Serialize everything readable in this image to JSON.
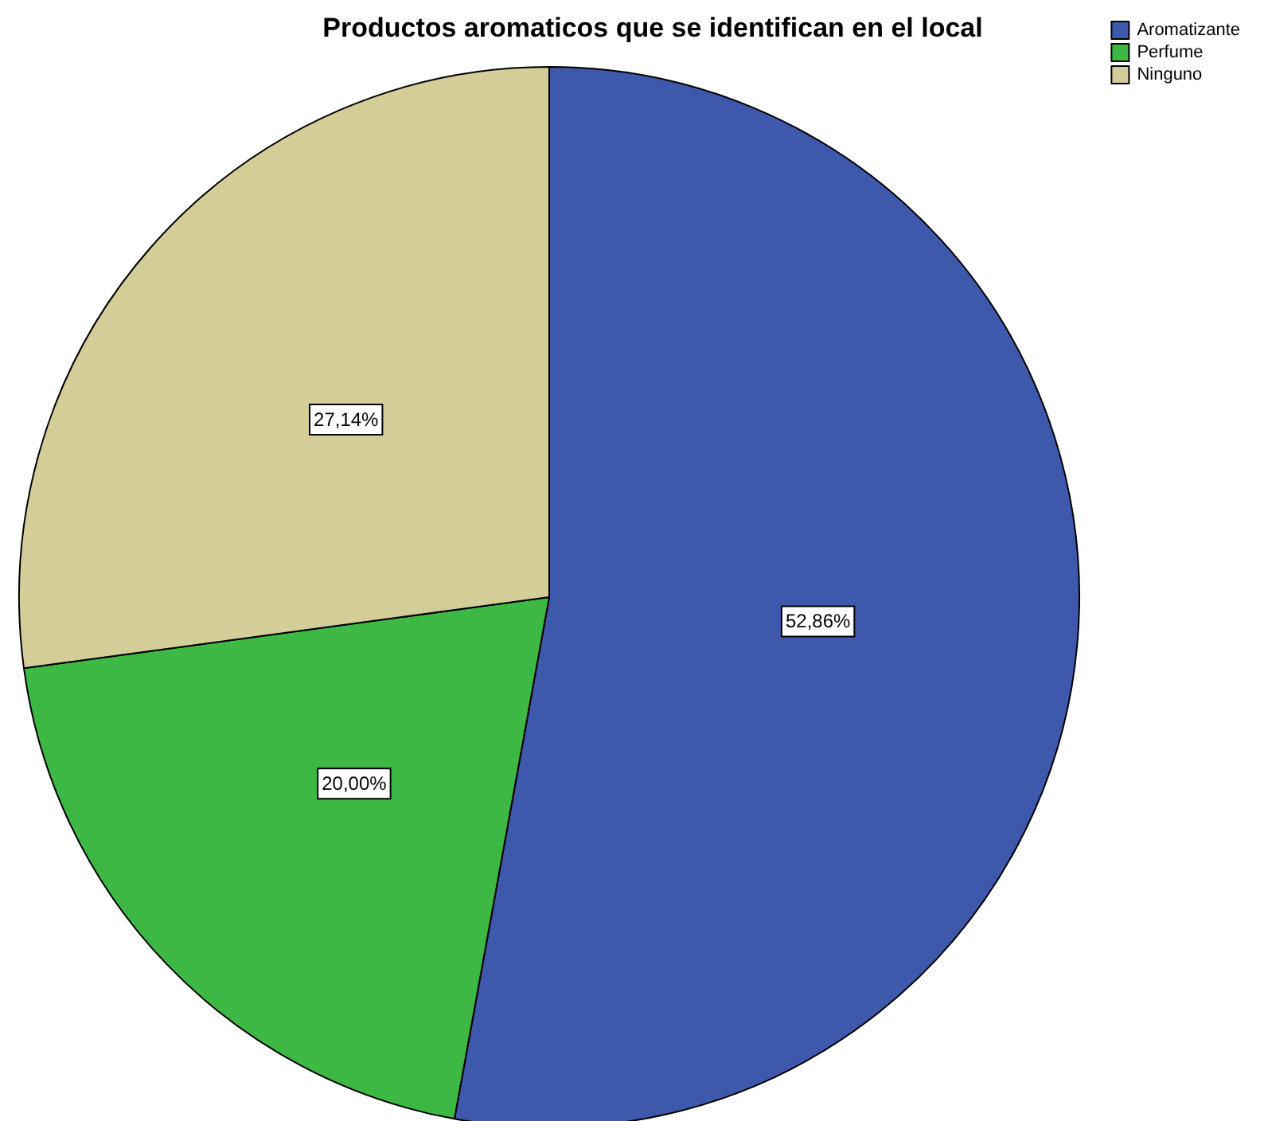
{
  "chart_data": {
    "type": "pie",
    "title": "Productos aromaticos que se identifican en el local",
    "categories": [
      "Aromatizante",
      "Perfume",
      "Ninguno"
    ],
    "values": [
      52.86,
      20.0,
      27.14
    ],
    "value_labels": [
      "52,86%",
      "20,00%",
      "27,14%"
    ],
    "colors": [
      "#3e58ac",
      "#3db844",
      "#d3ce97"
    ],
    "legend": "top right"
  }
}
